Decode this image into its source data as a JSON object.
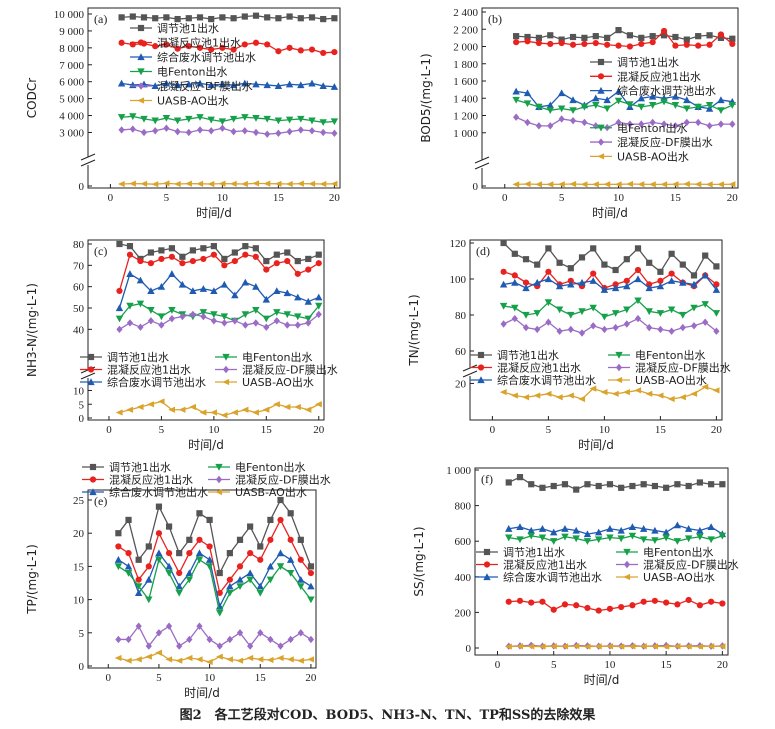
{
  "figure_caption": "图2　各工艺段对COD、BOD5、NH3-N、TN、TP和SS的去除效果",
  "colors": {
    "s1": "#555555",
    "s2": "#e8231f",
    "s3": "#1f5bb3",
    "s4": "#16a04a",
    "s5": "#9a6cc6",
    "s6": "#d9a32c"
  },
  "chart_data": [
    {
      "panel": "(a)",
      "type": "line",
      "ylabel": "CODCr",
      "xlabel": "时间/d",
      "xlim": [
        -2,
        20.5
      ],
      "xticks": [
        "0",
        "5",
        "10",
        "15",
        "20"
      ],
      "yupper": [
        2200,
        10000
      ],
      "ylower": [
        0,
        500
      ],
      "yticks": [
        "0",
        "3 000",
        "4 000",
        "5 000",
        "6 000",
        "7 000",
        "8 000",
        "9 000",
        "10 000"
      ],
      "legend_layout": "stack",
      "series": [
        {
          "name": "调节池1出水",
          "marker": "s",
          "values": [
            9800,
            9850,
            9800,
            9750,
            9800,
            9700,
            9750,
            9800,
            9700,
            9800,
            9750,
            9850,
            9900,
            9800,
            9750,
            9850,
            9750,
            9800,
            9700,
            9750
          ]
        },
        {
          "name": "混凝反应池1出水",
          "marker": "o",
          "values": [
            8300,
            8200,
            8250,
            8100,
            8200,
            7950,
            8100,
            8000,
            7900,
            8000,
            7900,
            8200,
            8300,
            8200,
            7800,
            8000,
            7850,
            7900,
            7700,
            7750
          ]
        },
        {
          "name": "综合废水调节池出水",
          "marker": "^",
          "values": [
            5900,
            5800,
            5850,
            5750,
            5900,
            5800,
            5850,
            5900,
            5800,
            5850,
            5800,
            5900,
            5850,
            5800,
            5750,
            5850,
            5800,
            5900,
            5750,
            5700
          ]
        },
        {
          "name": "电Fenton出水",
          "marker": "v",
          "values": [
            3900,
            3950,
            3800,
            3700,
            3850,
            3700,
            3800,
            3900,
            3750,
            3650,
            3800,
            3900,
            3850,
            3800,
            3700,
            3750,
            3800,
            3700,
            3600,
            3650
          ]
        },
        {
          "name": "混凝反应-DF膜出水",
          "marker": "D",
          "values": [
            3150,
            3200,
            3000,
            3100,
            3250,
            3050,
            3000,
            3150,
            3100,
            3250,
            3050,
            3100,
            3000,
            2900,
            2950,
            3050,
            3150,
            3100,
            3000,
            2950
          ]
        },
        {
          "name": "UASB-AO出水",
          "marker": "<",
          "values": [
            100,
            120,
            110,
            90,
            130,
            100,
            120,
            110,
            100,
            120,
            110,
            100,
            130,
            120,
            110,
            100,
            120,
            110,
            100,
            110
          ]
        }
      ]
    },
    {
      "panel": "(b)",
      "type": "line",
      "ylabel": "BOD5/(mg·L-1)",
      "xlabel": "时间/d",
      "xlim": [
        -2,
        20.5
      ],
      "xticks": [
        "0",
        "5",
        "10",
        "15",
        "20"
      ],
      "yupper": [
        800,
        2400
      ],
      "ylower": [
        0,
        100
      ],
      "yticks": [
        "0",
        "1 000",
        "1 200",
        "1 400",
        "1 600",
        "1 800",
        "2 000",
        "2 200",
        "2 400"
      ],
      "legend_layout": "stack",
      "series": [
        {
          "name": "调节池1出水",
          "marker": "s",
          "values": [
            2120,
            2110,
            2100,
            2130,
            2080,
            2110,
            2100,
            2120,
            2100,
            2190,
            2130,
            2100,
            2120,
            2130,
            2110,
            2080,
            2120,
            2130,
            2100,
            2090
          ]
        },
        {
          "name": "混凝反应池1出水",
          "marker": "o",
          "values": [
            2050,
            2060,
            2040,
            2030,
            2040,
            2020,
            2030,
            2040,
            2020,
            2010,
            2000,
            2030,
            2050,
            2180,
            2010,
            2020,
            2010,
            2020,
            2140,
            2030
          ]
        },
        {
          "name": "综合废水调节池出水",
          "marker": "^",
          "values": [
            1480,
            1460,
            1300,
            1320,
            1460,
            1380,
            1320,
            1400,
            1380,
            1480,
            1300,
            1400,
            1420,
            1400,
            1420,
            1380,
            1300,
            1280,
            1380,
            1360
          ]
        },
        {
          "name": "电Fenton出水",
          "marker": "v",
          "values": [
            1380,
            1340,
            1300,
            1260,
            1280,
            1260,
            1300,
            1320,
            1280,
            1370,
            1330,
            1300,
            1320,
            1360,
            1320,
            1280,
            1300,
            1320,
            1260,
            1320
          ]
        },
        {
          "name": "混凝反应-DF膜出水",
          "marker": "D",
          "values": [
            1180,
            1120,
            1080,
            1080,
            1160,
            1140,
            1120,
            1080,
            1060,
            1120,
            1100,
            1100,
            1120,
            1100,
            1080,
            1120,
            1120,
            1080,
            1100,
            1100
          ]
        },
        {
          "name": "UASB-AO出水",
          "marker": "<",
          "values": [
            20,
            25,
            20,
            20,
            22,
            25,
            20,
            20,
            22,
            20,
            25,
            22,
            20,
            20,
            22,
            25,
            22,
            20,
            20,
            22
          ]
        }
      ]
    },
    {
      "panel": "(c)",
      "type": "line",
      "ylabel": "NH3-N/(mg·L-1)",
      "xlabel": "时间/d",
      "xlim": [
        -2,
        20.5
      ],
      "xticks": [
        "0",
        "5",
        "10",
        "15",
        "20"
      ],
      "yupper": [
        35,
        80
      ],
      "ylower": [
        0,
        12
      ],
      "yticks": [
        "0",
        "5",
        "10",
        "40",
        "50",
        "60",
        "70",
        "80"
      ],
      "legend_layout": "two-col",
      "series": [
        {
          "name": "调节池1出水",
          "marker": "s",
          "values": [
            80,
            79,
            73,
            76,
            77,
            78,
            74,
            77,
            78,
            79,
            73,
            76,
            79,
            78,
            72,
            75,
            76,
            72,
            73,
            75
          ]
        },
        {
          "name": "混凝反应池1出水",
          "marker": "o",
          "values": [
            58,
            75,
            72,
            71,
            73,
            74,
            71,
            72,
            73,
            75,
            70,
            72,
            75,
            74,
            68,
            71,
            72,
            66,
            68,
            71
          ]
        },
        {
          "name": "综合废水调节池出水",
          "marker": "^",
          "values": [
            50,
            66,
            63,
            58,
            60,
            66,
            61,
            58,
            59,
            58,
            61,
            56,
            62,
            60,
            54,
            58,
            57,
            55,
            53,
            55
          ]
        },
        {
          "name": "电Fenton出水",
          "marker": "v",
          "values": [
            45,
            51,
            52,
            49,
            46,
            49,
            47,
            46,
            48,
            47,
            46,
            44,
            47,
            49,
            45,
            48,
            47,
            46,
            45,
            51
          ]
        },
        {
          "name": "混凝反应-DF膜出水",
          "marker": "D",
          "values": [
            40,
            43,
            41,
            44,
            42,
            45,
            46,
            47,
            46,
            44,
            43,
            44,
            42,
            43,
            41,
            44,
            42,
            42,
            43,
            47
          ]
        },
        {
          "name": "UASB-AO出水",
          "marker": "<",
          "values": [
            2,
            3,
            4,
            5,
            6,
            3,
            3,
            4,
            2,
            2,
            1,
            2,
            3,
            2,
            3,
            5,
            4,
            4,
            3,
            5
          ]
        }
      ]
    },
    {
      "panel": "(d)",
      "type": "line",
      "ylabel": "TN/(mg·L-1)",
      "xlabel": "时间/d",
      "xlim": [
        -2,
        20.5
      ],
      "xticks": [
        "0",
        "5",
        "10",
        "15",
        "20"
      ],
      "yupper": [
        55,
        120
      ],
      "ylower": [
        0,
        22
      ],
      "yticks": [
        "20",
        "60",
        "80",
        "100",
        "120"
      ],
      "legend_layout": "two-col",
      "series": [
        {
          "name": "调节池1出水",
          "marker": "s",
          "values": [
            120,
            114,
            111,
            108,
            117,
            109,
            106,
            112,
            117,
            108,
            105,
            111,
            117,
            109,
            104,
            114,
            108,
            102,
            113,
            107
          ]
        },
        {
          "name": "混凝反应池1出水",
          "marker": "o",
          "values": [
            104,
            102,
            98,
            96,
            104,
            97,
            99,
            96,
            103,
            95,
            97,
            99,
            105,
            97,
            99,
            103,
            98,
            96,
            102,
            97
          ]
        },
        {
          "name": "综合废水调节池出水",
          "marker": "^",
          "values": [
            97,
            98,
            95,
            98,
            100,
            96,
            97,
            98,
            99,
            94,
            95,
            96,
            100,
            95,
            96,
            99,
            98,
            97,
            102,
            94
          ]
        },
        {
          "name": "电Fenton出水",
          "marker": "v",
          "values": [
            85,
            84,
            80,
            81,
            87,
            83,
            80,
            82,
            84,
            79,
            81,
            83,
            88,
            82,
            81,
            83,
            80,
            84,
            86,
            81
          ]
        },
        {
          "name": "混凝反应-DF膜出水",
          "marker": "D",
          "values": [
            75,
            78,
            73,
            72,
            76,
            71,
            72,
            70,
            74,
            72,
            73,
            75,
            78,
            73,
            72,
            71,
            73,
            74,
            76,
            71
          ]
        },
        {
          "name": "UASB-AO出水",
          "marker": "<",
          "values": [
            15,
            13,
            12,
            13,
            14,
            12,
            13,
            11,
            17,
            15,
            14,
            15,
            16,
            14,
            13,
            11,
            12,
            14,
            18,
            16
          ]
        }
      ]
    },
    {
      "panel": "(e)",
      "type": "line",
      "ylabel": "TP/(mg·L-1)",
      "xlabel": "时间/d",
      "xlim": [
        -2,
        20.5
      ],
      "xticks": [
        "0",
        "5",
        "10",
        "15",
        "20"
      ],
      "ylim": [
        0,
        25
      ],
      "yticks": [
        "0",
        "5",
        "10",
        "15",
        "20",
        "25"
      ],
      "legend_layout": "two-col-top",
      "series": [
        {
          "name": "调节池1出水",
          "marker": "s",
          "values": [
            20,
            22,
            16,
            18,
            24,
            21,
            17,
            19,
            23,
            22,
            14,
            17,
            19,
            21,
            18,
            22,
            25,
            23,
            19,
            15
          ]
        },
        {
          "name": "混凝反应池1出水",
          "marker": "o",
          "values": [
            18,
            17,
            13,
            15,
            20,
            17,
            14,
            17,
            19,
            18,
            11,
            13,
            15,
            17,
            16,
            19,
            22,
            19,
            16,
            14
          ]
        },
        {
          "name": "综合废水调节池出水",
          "marker": "^",
          "values": [
            16,
            15,
            11,
            13,
            17,
            15,
            12,
            14,
            17,
            16,
            9,
            12,
            13,
            14,
            12,
            15,
            17,
            16,
            13,
            12
          ]
        },
        {
          "name": "电Fenton出水",
          "marker": "v",
          "values": [
            15,
            14,
            12,
            10,
            16,
            14,
            11,
            13,
            16,
            15,
            8,
            11,
            12,
            13,
            11,
            13,
            15,
            14,
            12,
            10
          ]
        },
        {
          "name": "混凝反应-DF膜出水",
          "marker": "D",
          "values": [
            4,
            4,
            6,
            3,
            5,
            6,
            3,
            4,
            6,
            4,
            3,
            4,
            5,
            3,
            5,
            4,
            3,
            4,
            5,
            4
          ]
        },
        {
          "name": "UASB-AO出水",
          "marker": "<",
          "values": [
            1.2,
            0.8,
            1.0,
            1.4,
            2.0,
            1.0,
            0.8,
            1.2,
            1.0,
            0.6,
            1.4,
            1.0,
            0.8,
            1.2,
            1.0,
            0.9,
            1.2,
            1.0,
            0.8,
            1.0
          ]
        }
      ]
    },
    {
      "panel": "(f)",
      "type": "line",
      "ylabel": "SS/(mg·L-1)",
      "xlabel": "时间/d",
      "xlim": [
        -2,
        20.5
      ],
      "xticks": [
        "0",
        "5",
        "10",
        "15",
        "20"
      ],
      "ylim": [
        0,
        1000
      ],
      "yticks": [
        "0",
        "200",
        "400",
        "600",
        "800",
        "1 000"
      ],
      "legend_layout": "two-col-mid",
      "series": [
        {
          "name": "调节池1出水",
          "marker": "s",
          "values": [
            930,
            960,
            920,
            900,
            910,
            920,
            890,
            920,
            910,
            920,
            900,
            910,
            920,
            910,
            900,
            920,
            910,
            930,
            920,
            920
          ]
        },
        {
          "name": "混凝反应池1出水",
          "marker": "o",
          "values": [
            260,
            265,
            255,
            260,
            215,
            245,
            240,
            225,
            210,
            220,
            230,
            240,
            260,
            265,
            255,
            245,
            270,
            240,
            260,
            250
          ]
        },
        {
          "name": "综合废水调节池出水",
          "marker": "^",
          "values": [
            670,
            680,
            660,
            670,
            650,
            670,
            660,
            640,
            650,
            670,
            660,
            680,
            670,
            660,
            650,
            690,
            670,
            660,
            680,
            640
          ]
        },
        {
          "name": "电Fenton出水",
          "marker": "v",
          "values": [
            620,
            610,
            630,
            620,
            600,
            625,
            615,
            600,
            610,
            620,
            615,
            630,
            610,
            605,
            620,
            600,
            615,
            625,
            610,
            630
          ]
        },
        {
          "name": "混凝反应-DF膜出水",
          "marker": "D",
          "values": [
            10,
            12,
            15,
            10,
            12,
            10,
            14,
            12,
            10,
            12,
            11,
            13,
            10,
            12,
            14,
            10,
            12,
            13,
            10,
            12
          ]
        },
        {
          "name": "UASB-AO出水",
          "marker": "<",
          "values": [
            8,
            10,
            9,
            8,
            10,
            9,
            11,
            8,
            9,
            10,
            8,
            9,
            10,
            9,
            8,
            10,
            9,
            8,
            10,
            9
          ]
        }
      ]
    }
  ]
}
